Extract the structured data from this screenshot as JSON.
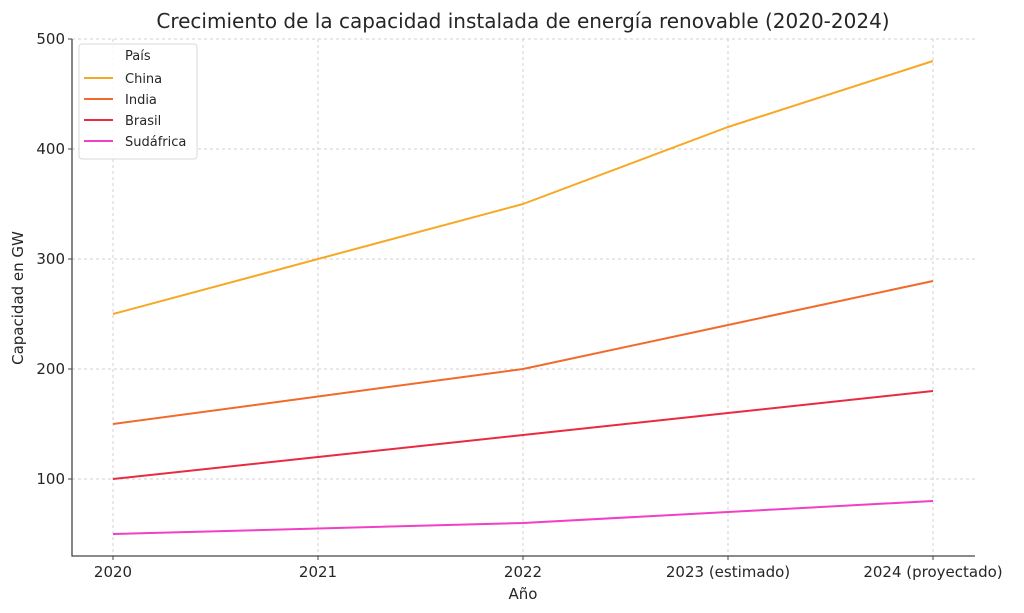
{
  "chart_data": {
    "type": "line",
    "title": "Crecimiento de la capacidad instalada de energía renovable (2020-2024)",
    "xlabel": "Año",
    "ylabel": "Capacidad en GW",
    "categories": [
      "2020",
      "2021",
      "2022",
      "2023 (estimado)",
      "2024 (proyectado)"
    ],
    "ylim": [
      30,
      500
    ],
    "yticks": [
      100,
      200,
      300,
      400,
      500
    ],
    "grid": true,
    "legend": {
      "title": "País",
      "placement": "top-left"
    },
    "series": [
      {
        "name": "China",
        "color": "#f7a825",
        "values": [
          250,
          300,
          350,
          420,
          480
        ]
      },
      {
        "name": "India",
        "color": "#f26a2b",
        "values": [
          150,
          175,
          200,
          240,
          280
        ]
      },
      {
        "name": "Brasil",
        "color": "#ea2a3f",
        "values": [
          100,
          120,
          140,
          160,
          180
        ]
      },
      {
        "name": "Sudáfrica",
        "color": "#f23fc6",
        "values": [
          50,
          55,
          60,
          70,
          80
        ]
      }
    ]
  }
}
